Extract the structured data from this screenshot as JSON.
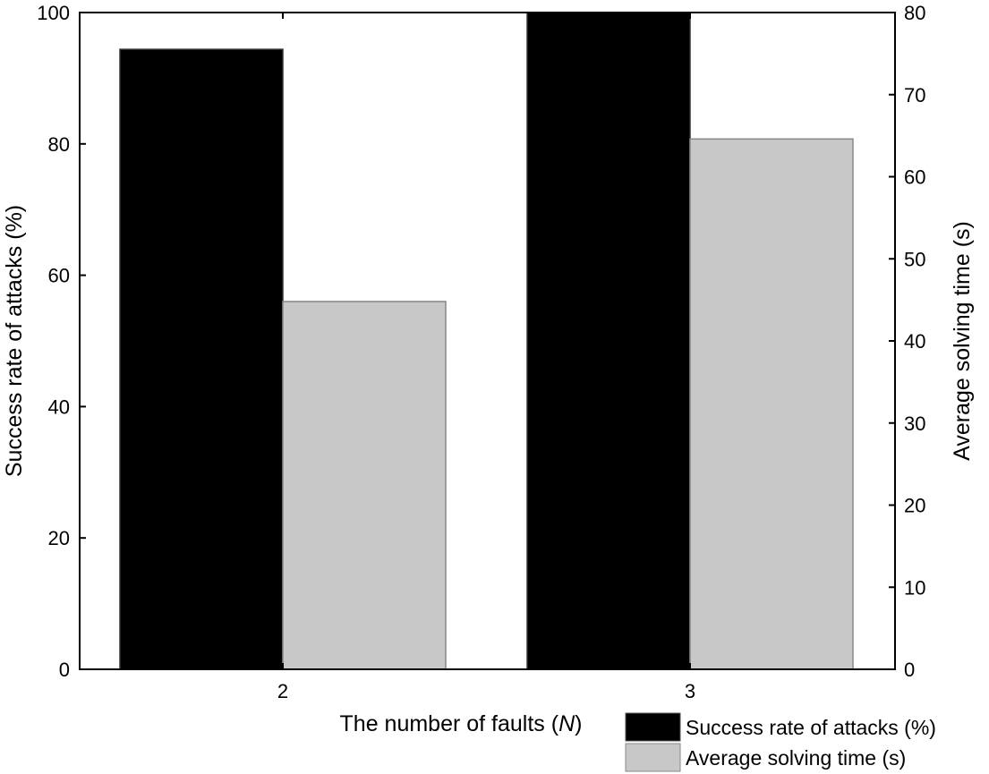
{
  "chart_data": {
    "type": "bar",
    "categories": [
      "2",
      "3"
    ],
    "xlabel": "The number of faults (N)",
    "xlabel_parts": {
      "prefix": "The number of faults (",
      "italic": "N",
      "suffix": ")"
    },
    "series": [
      {
        "name": "Success rate of attacks (%)",
        "axis": "left",
        "values": [
          94.4,
          100
        ],
        "color": "#000000"
      },
      {
        "name": "Average solving time (s)",
        "axis": "right",
        "values": [
          44.8,
          64.6
        ],
        "color": "#c8c8c8"
      }
    ],
    "y_left": {
      "label": "Success rate of attacks (%)",
      "ylim": [
        0,
        100
      ],
      "ticks": [
        0,
        20,
        40,
        60,
        80,
        100
      ]
    },
    "y_right": {
      "label": "Average solving time (s)",
      "ylim": [
        0,
        80
      ],
      "ticks": [
        0,
        10,
        20,
        30,
        40,
        50,
        60,
        70,
        80
      ]
    },
    "legend_position": "bottom-right",
    "grid": false
  }
}
